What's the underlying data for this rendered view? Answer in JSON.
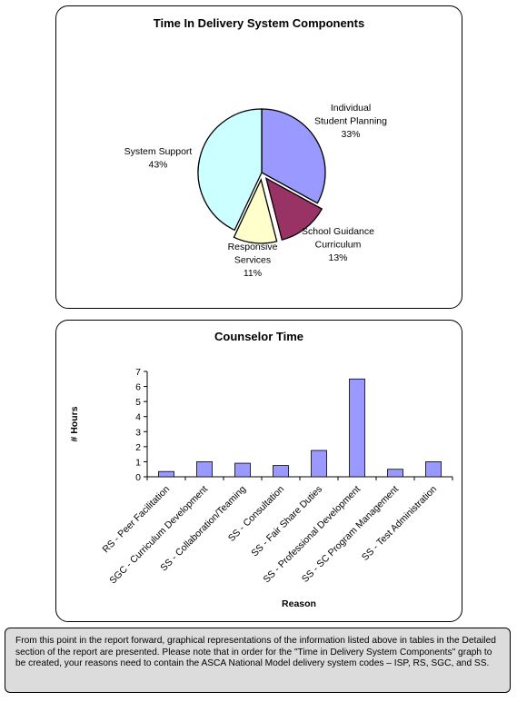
{
  "pie_chart_title": "Time In Delivery System Components",
  "bar_chart_title": "Counselor Time",
  "footer_note": "From this point in the report forward, graphical representations of the information listed above in tables in the Detailed section of the report are presented.  Please note that in order for the \"Time in Delivery System Components\" graph to be created,  your reasons need to contain the ASCA  National Model delivery system codes – ISP, RS, SGC, and SS.",
  "chart_data": [
    {
      "type": "pie",
      "title": "Time In Delivery System Components",
      "slices": [
        {
          "lines": [
            "Individual",
            "Student Planning",
            "33%"
          ],
          "value": 33,
          "color": "#9999ff"
        },
        {
          "lines": [
            "School Guidance",
            "Curriculum",
            "13%"
          ],
          "value": 13,
          "color": "#993366"
        },
        {
          "lines": [
            "Responsive",
            "Services",
            "11%"
          ],
          "value": 11,
          "color": "#ffffcc"
        },
        {
          "lines": [
            "System Support",
            "43%"
          ],
          "value": 43,
          "color": "#ccffff"
        }
      ]
    },
    {
      "type": "bar",
      "title": "Counselor Time",
      "xlabel": "Reason",
      "ylabel": "# Hours",
      "ylim": [
        0,
        7
      ],
      "yticks": [
        "0",
        "1",
        "2",
        "3",
        "4",
        "5",
        "6",
        "7"
      ],
      "categories": [
        "RS - Peer Facilitation",
        "SGC - Curriculum Development",
        "SS - Collaboration/Teaming",
        "SS - Consultation",
        "SS - Fair Share Duties",
        "SS - Professional Development",
        "SS - SC Program Management",
        "SS - Test Administration"
      ],
      "values": [
        0.35,
        1.0,
        0.9,
        0.75,
        1.75,
        6.5,
        0.5,
        1.0
      ],
      "bar_color": "#9999ff",
      "grid": false
    }
  ]
}
